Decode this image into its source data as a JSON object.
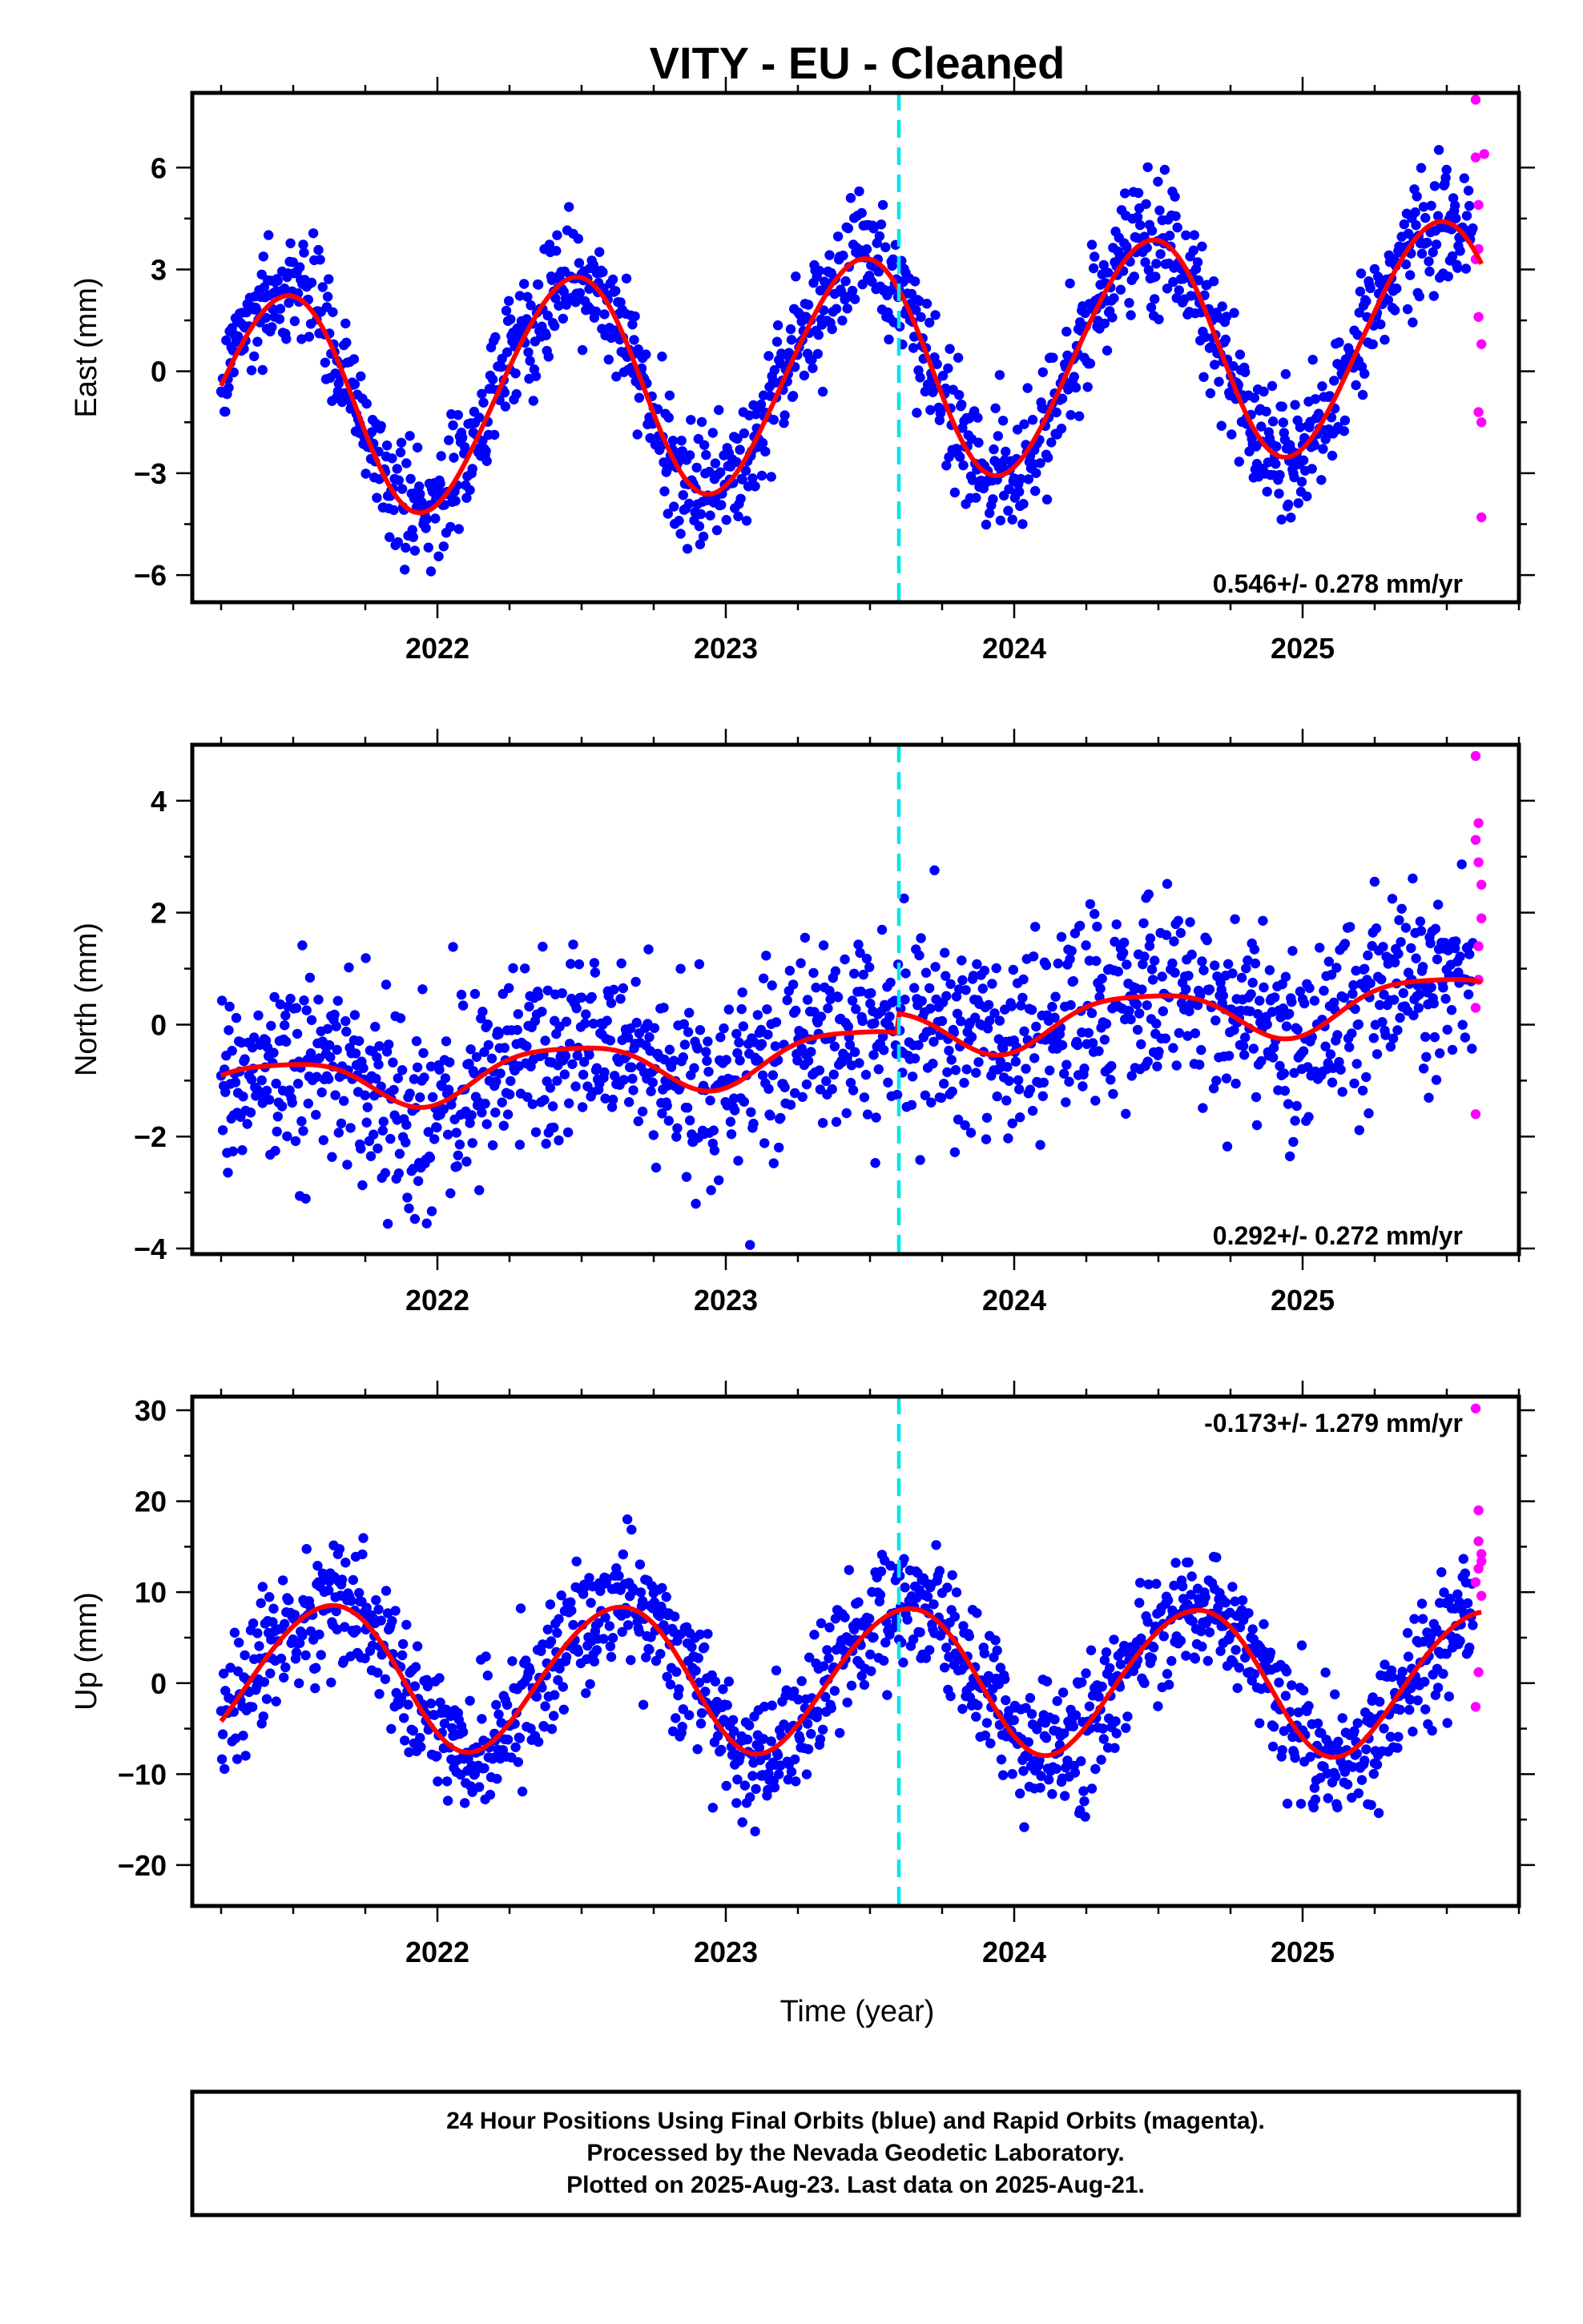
{
  "title": "VITY  - EU - Cleaned",
  "xlabel": "Time (year)",
  "colors": {
    "final": "#0000ff",
    "rapid": "#ff00ff",
    "model": "#ff0000",
    "marker": "#00e5ee"
  },
  "footer": [
    "24 Hour Positions Using Final Orbits (blue) and Rapid Orbits (magenta).",
    "Processed by the Nevada Geodetic Laboratory.",
    "Plotted on 2025-Aug-23. Last data on 2025-Aug-21."
  ],
  "chart_data": [
    {
      "type": "scatter",
      "panel": "east",
      "ylabel": "East (mm)",
      "xlim": [
        2021.15,
        2025.75
      ],
      "ylim": [
        -6.8,
        8.2
      ],
      "x_ticks": [
        2022,
        2023,
        2024,
        2025
      ],
      "y_ticks": [
        -6,
        -3,
        0,
        3,
        6
      ],
      "y_tick_labels": [
        "−6",
        "−3",
        "0",
        "3",
        "6"
      ],
      "rate_text": "0.546+/- 0.278 mm/yr",
      "equipment_change_x": 2023.6,
      "final_orbits_start": 2021.25,
      "final_orbits_end": 2025.59,
      "model": {
        "offset": 0.0,
        "trend": 0.546,
        "annual_amp": 3.3,
        "annual_phase": 0.46,
        "semiannual_amp": 0.2,
        "semiannual_phase": 0.1
      },
      "noise_sd": 0.9,
      "rapid_points": [
        [
          2025.6,
          8.0
        ],
        [
          2025.6,
          6.3
        ],
        [
          2025.61,
          4.9
        ],
        [
          2025.61,
          3.6
        ],
        [
          2025.61,
          1.6
        ],
        [
          2025.62,
          0.8
        ],
        [
          2025.61,
          -1.2
        ],
        [
          2025.62,
          -1.5
        ],
        [
          2025.62,
          -4.3
        ],
        [
          2025.63,
          6.4
        ],
        [
          2025.6,
          3.3
        ]
      ]
    },
    {
      "type": "scatter",
      "panel": "north",
      "ylabel": "North (mm)",
      "xlim": [
        2021.15,
        2025.75
      ],
      "ylim": [
        -4.1,
        5.0
      ],
      "x_ticks": [
        2022,
        2023,
        2024,
        2025
      ],
      "y_ticks": [
        -4,
        -2,
        0,
        2,
        4
      ],
      "y_tick_labels": [
        "−4",
        "−2",
        "0",
        "2",
        "4"
      ],
      "rate_text": "0.292+/- 0.272 mm/yr",
      "equipment_change_x": 2023.6,
      "final_orbits_start": 2021.25,
      "final_orbits_end": 2025.59,
      "model": {
        "offset": -0.5,
        "trend": 0.292,
        "annual_amp": 0.45,
        "annual_phase": 0.45,
        "semiannual_amp": 0.1,
        "semiannual_phase": 0.2,
        "step": 0.35
      },
      "noise_sd": 0.85,
      "rapid_points": [
        [
          2025.6,
          4.8
        ],
        [
          2025.6,
          3.3
        ],
        [
          2025.61,
          3.6
        ],
        [
          2025.61,
          2.9
        ],
        [
          2025.62,
          2.5
        ],
        [
          2025.61,
          1.4
        ],
        [
          2025.62,
          1.9
        ],
        [
          2025.61,
          0.8
        ],
        [
          2025.6,
          0.3
        ],
        [
          2025.6,
          -1.6
        ]
      ]
    },
    {
      "type": "scatter",
      "panel": "up",
      "ylabel": "Up (mm)",
      "xlim": [
        2021.15,
        2025.75
      ],
      "ylim": [
        -24.5,
        31.5
      ],
      "x_ticks": [
        2022,
        2023,
        2024,
        2025
      ],
      "y_ticks": [
        -20,
        -10,
        0,
        10,
        20,
        30
      ],
      "y_tick_labels": [
        "−20",
        "−10",
        "0",
        "10",
        "20",
        "30"
      ],
      "rate_text": "-0.173+/- 1.279 mm/yr",
      "equipment_change_x": 2023.6,
      "final_orbits_start": 2021.25,
      "final_orbits_end": 2025.59,
      "model": {
        "offset": 0.5,
        "trend": -0.173,
        "annual_amp": 8.0,
        "annual_phase": 0.62,
        "semiannual_amp": 0.5,
        "semiannual_phase": 0.3
      },
      "noise_sd": 3.6,
      "rapid_points": [
        [
          2025.6,
          30.2
        ],
        [
          2025.61,
          19.0
        ],
        [
          2025.61,
          15.6
        ],
        [
          2025.62,
          14.2
        ],
        [
          2025.61,
          12.6
        ],
        [
          2025.6,
          11.1
        ],
        [
          2025.62,
          9.6
        ],
        [
          2025.61,
          1.2
        ],
        [
          2025.6,
          -2.6
        ],
        [
          2025.62,
          13.4
        ]
      ]
    }
  ]
}
